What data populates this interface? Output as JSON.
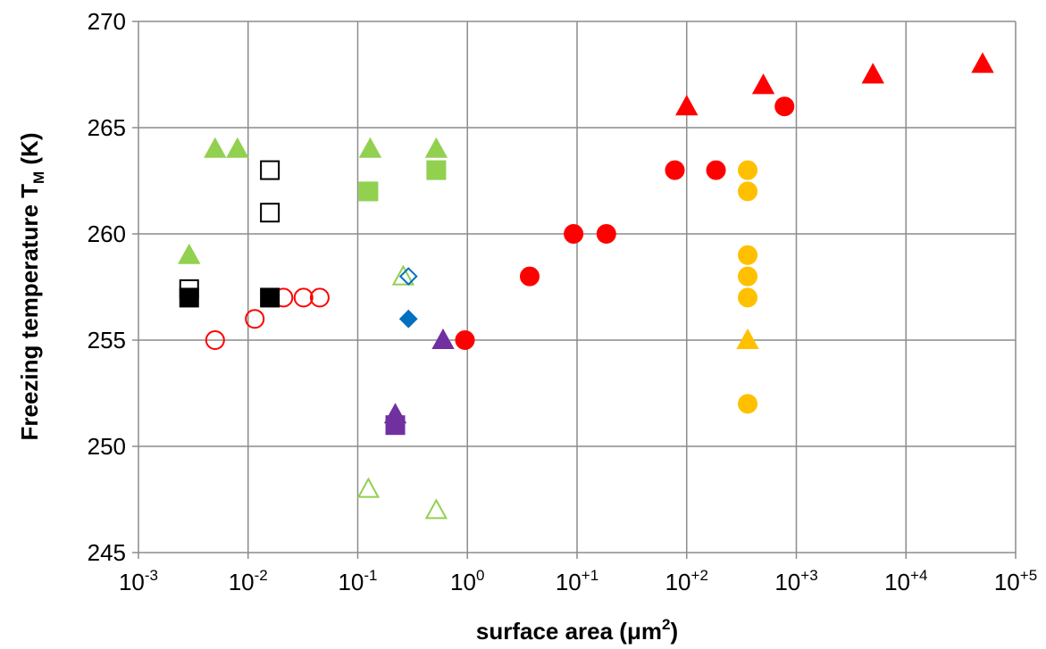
{
  "chart_data": {
    "type": "scatter",
    "title": "",
    "xlabel": {
      "main": "surface area (μm",
      "sup": "2",
      "tail": ")"
    },
    "ylabel": {
      "main": "Freezing temperature T",
      "sub": "M",
      "tail": " (K)"
    },
    "x_scale": "log",
    "xlim": [
      0.001,
      100000
    ],
    "ylim": [
      245,
      270
    ],
    "x_ticks": [
      0.001,
      0.01,
      0.1,
      1,
      10,
      100,
      1000,
      10000,
      100000
    ],
    "x_tick_labels": [
      {
        "base": "10",
        "exp": "-3"
      },
      {
        "base": "10",
        "exp": "-2"
      },
      {
        "base": "10",
        "exp": "-1"
      },
      {
        "base": "10",
        "exp": "0"
      },
      {
        "base": "10",
        "exp": "+1"
      },
      {
        "base": "10",
        "exp": "+2"
      },
      {
        "base": "10",
        "exp": "+3"
      },
      {
        "base": "10",
        "exp": "+4"
      },
      {
        "base": "10",
        "exp": "+5"
      }
    ],
    "y_ticks": [
      245,
      250,
      255,
      260,
      265,
      270
    ],
    "y_tick_labels": [
      "245",
      "250",
      "255",
      "260",
      "265",
      "270"
    ],
    "grid": true,
    "legend": "none",
    "series": [
      {
        "marker": "triangle",
        "fill": "#ff0000",
        "stroke": "#ff0000",
        "points": [
          [
            100,
            266
          ],
          [
            500,
            267
          ],
          [
            5000,
            267.5
          ],
          [
            50000,
            268
          ]
        ]
      },
      {
        "marker": "circle",
        "fill": "#ff0000",
        "stroke": "#ff0000",
        "points": [
          [
            0.95,
            255
          ],
          [
            3.7,
            258
          ],
          [
            9.3,
            260
          ],
          [
            18.5,
            260
          ],
          [
            78,
            263
          ],
          [
            185,
            263
          ],
          [
            780,
            266
          ]
        ]
      },
      {
        "marker": "circle",
        "fill": "none",
        "stroke": "#ff0000",
        "points": [
          [
            0.005,
            255
          ],
          [
            0.0115,
            256
          ],
          [
            0.021,
            257
          ],
          [
            0.032,
            257
          ],
          [
            0.045,
            257
          ]
        ]
      },
      {
        "marker": "circle",
        "fill": "#ffc000",
        "stroke": "#ffc000",
        "points": [
          [
            360,
            263
          ],
          [
            360,
            262
          ],
          [
            360,
            259
          ],
          [
            360,
            258
          ],
          [
            360,
            257
          ],
          [
            360,
            252
          ]
        ]
      },
      {
        "marker": "triangle",
        "fill": "#ffc000",
        "stroke": "#ffc000",
        "points": [
          [
            360,
            255
          ]
        ]
      },
      {
        "marker": "triangle",
        "fill": "#92d050",
        "stroke": "#92d050",
        "points": [
          [
            0.0029,
            259
          ],
          [
            0.005,
            264
          ],
          [
            0.008,
            264
          ],
          [
            0.13,
            264
          ],
          [
            0.52,
            264
          ]
        ]
      },
      {
        "marker": "square",
        "fill": "#92d050",
        "stroke": "#92d050",
        "points": [
          [
            0.125,
            262
          ],
          [
            0.52,
            263
          ]
        ]
      },
      {
        "marker": "triangle",
        "fill": "none",
        "stroke": "#92d050",
        "points": [
          [
            0.125,
            248
          ],
          [
            0.52,
            247
          ],
          [
            0.26,
            258
          ]
        ]
      },
      {
        "marker": "square",
        "fill": "none",
        "stroke": "#000000",
        "points": [
          [
            0.0029,
            257.4
          ],
          [
            0.0158,
            263
          ],
          [
            0.0158,
            261
          ]
        ]
      },
      {
        "marker": "square",
        "fill": "#000000",
        "stroke": "#000000",
        "points": [
          [
            0.0029,
            257
          ],
          [
            0.0158,
            257
          ]
        ]
      },
      {
        "marker": "diamond",
        "fill": "#0070c0",
        "stroke": "#0070c0",
        "points": [
          [
            0.29,
            256
          ]
        ]
      },
      {
        "marker": "diamond",
        "fill": "none",
        "stroke": "#0070c0",
        "points": [
          [
            0.29,
            258
          ]
        ]
      },
      {
        "marker": "triangle",
        "fill": "#7030a0",
        "stroke": "#7030a0",
        "points": [
          [
            0.6,
            255
          ],
          [
            0.22,
            251.5
          ]
        ]
      },
      {
        "marker": "square",
        "fill": "#7030a0",
        "stroke": "#7030a0",
        "points": [
          [
            0.22,
            251
          ]
        ]
      }
    ]
  }
}
